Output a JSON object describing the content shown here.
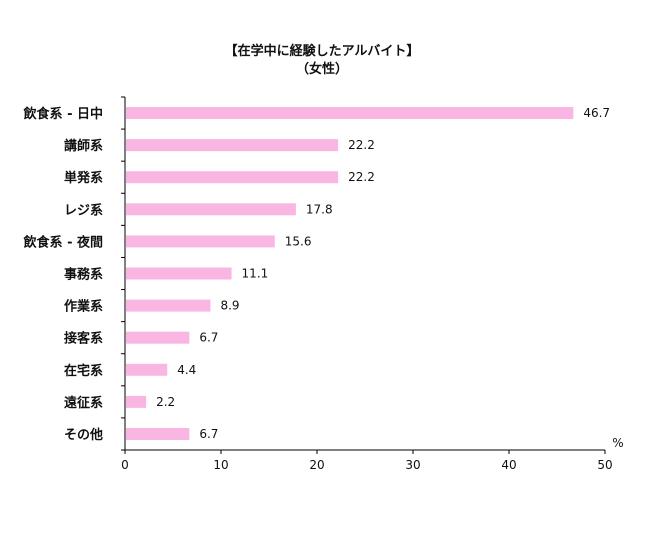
{
  "chart_data": {
    "type": "bar",
    "orientation": "horizontal",
    "title": "【在学中に経験したアルバイト】",
    "subtitle": "（女性）",
    "categories": [
      "飲食系 - 日中",
      "講師系",
      "単発系",
      "レジ系",
      "飲食系 - 夜間",
      "事務系",
      "作業系",
      "接客系",
      "在宅系",
      "遠征系",
      "その他"
    ],
    "values": [
      46.7,
      22.2,
      22.2,
      17.8,
      15.6,
      11.1,
      8.9,
      6.7,
      4.4,
      2.2,
      6.7
    ],
    "value_labels": [
      "46.7",
      "22.2",
      "22.2",
      "17.8",
      "15.6",
      "11.1",
      "8.9",
      "6.7",
      "4.4",
      "2.2",
      "6.7"
    ],
    "xlim": [
      0,
      50
    ],
    "xticks": [
      0,
      10,
      20,
      30,
      40,
      50
    ],
    "xtick_labels": [
      "0",
      "10",
      "20",
      "30",
      "40",
      "50"
    ],
    "unit": "%",
    "bar_color": "#f9b6e3",
    "grid": false,
    "legend": "none"
  }
}
